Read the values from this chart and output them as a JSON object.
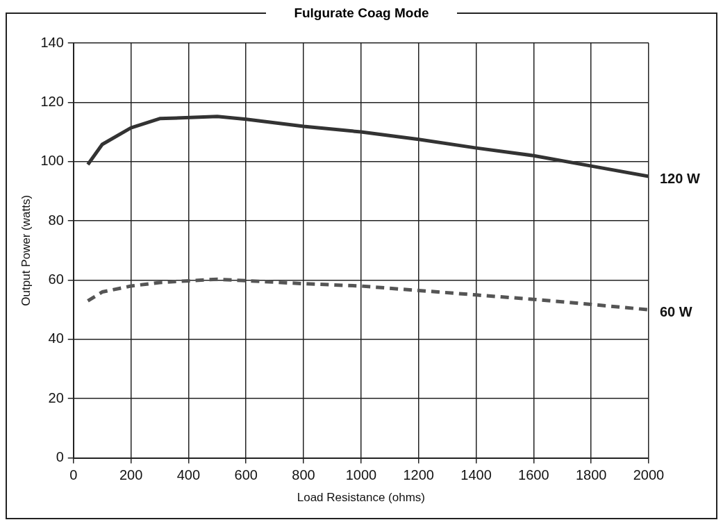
{
  "chart_data": {
    "type": "line",
    "title": "Fulgurate Coag Mode",
    "xlabel": "Load Resistance (ohms)",
    "ylabel": "Output Power (watts)",
    "xlim": [
      0,
      2000
    ],
    "xticks": [
      0,
      200,
      400,
      600,
      800,
      1000,
      1200,
      1400,
      1600,
      1800,
      2000
    ],
    "ylim": [
      0,
      140
    ],
    "yticks": [
      0,
      20,
      40,
      60,
      80,
      100,
      120,
      140
    ],
    "grid": true,
    "legend": false,
    "marker": "none",
    "series": [
      {
        "name": "120 W",
        "color": "#333333",
        "line_style": "solid",
        "x": [
          50,
          100,
          200,
          300,
          500,
          600,
          800,
          1000,
          1200,
          1400,
          1600,
          1800,
          2000
        ],
        "values": [
          99,
          105.8,
          111.4,
          114.5,
          115.2,
          114.3,
          111.9,
          110,
          107.5,
          104.6,
          102,
          98.5,
          95
        ]
      },
      {
        "name": "60 W",
        "color": "#555555",
        "line_style": "dashed",
        "x": [
          50,
          100,
          200,
          300,
          500,
          600,
          800,
          1000,
          1200,
          1400,
          1600,
          1800,
          2000
        ],
        "values": [
          53,
          56,
          58,
          59.2,
          60.3,
          59.8,
          58.8,
          58,
          56.5,
          55,
          53.5,
          51.8,
          50
        ]
      }
    ]
  }
}
